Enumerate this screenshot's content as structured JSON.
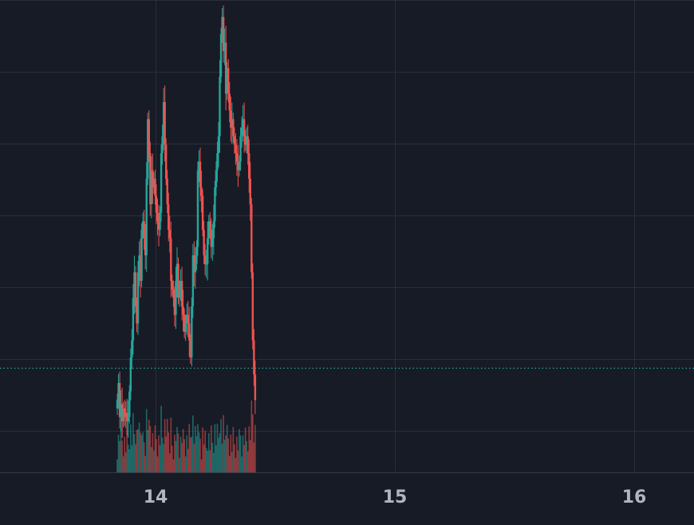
{
  "chart_data": {
    "type": "candlestick",
    "title": "",
    "xlabel": "",
    "ylabel": "",
    "x_ticks": [
      {
        "label": "14",
        "value": 14
      },
      {
        "label": "15",
        "value": 15
      },
      {
        "label": "16",
        "value": 16
      }
    ],
    "xlim": [
      13.35,
      16.25
    ],
    "ylim": [
      -9,
      102
    ],
    "grid": true,
    "legend": "none",
    "current_price": 15.5,
    "colors": {
      "up": "#26a69a",
      "down": "#ef5350",
      "grid": "#2a2e39",
      "background": "#171b26",
      "tick_text": "#b2b5be",
      "price_line": "#26a69a"
    },
    "ohlc": []
  }
}
